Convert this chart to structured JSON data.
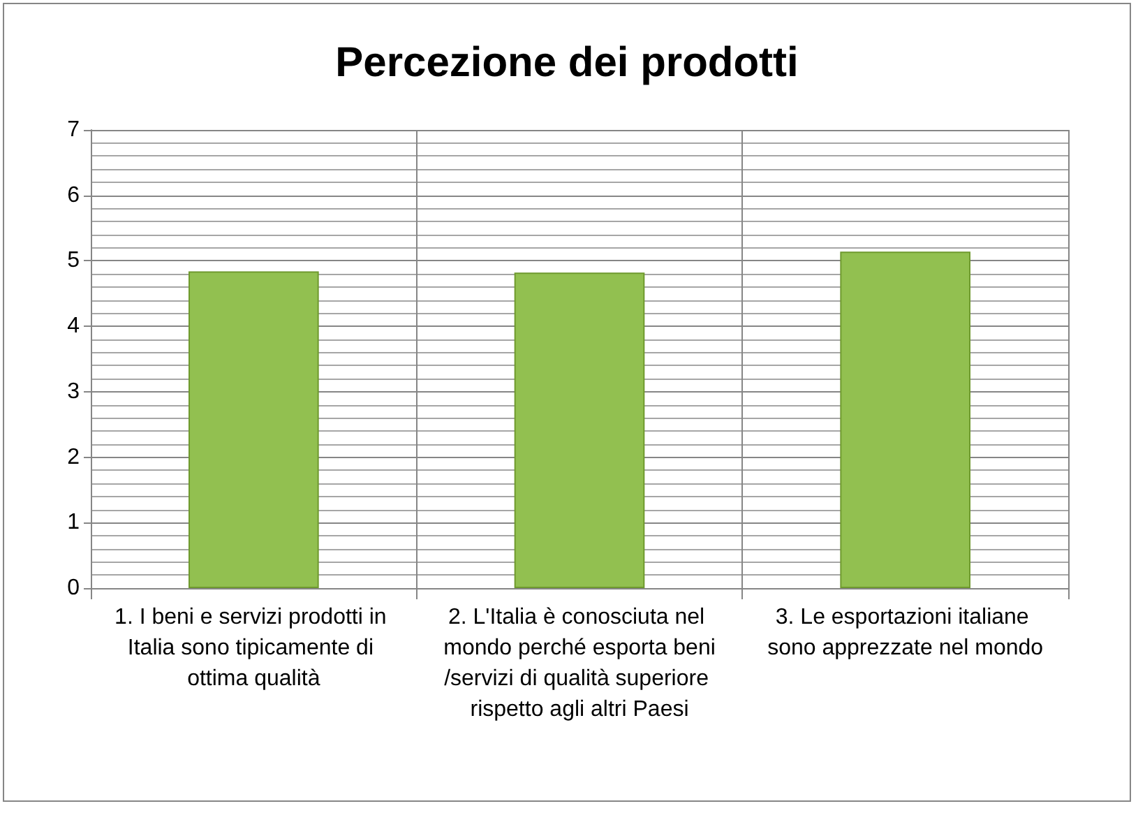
{
  "chart_data": {
    "type": "bar",
    "title": "Percezione dei prodotti",
    "categories": [
      "1. I beni e servizi prodotti in Italia sono tipicamente di ottima qualità",
      "2. L'Italia è conosciuta nel mondo perché esporta beni/servizi di qualità superiore rispetto agli altri Paesi",
      "3. Le esportazioni italiane sono apprezzate nel mondo"
    ],
    "values": [
      4.84,
      4.82,
      5.14
    ],
    "color": "#92c050",
    "ylim": [
      0,
      7
    ],
    "yticks": [
      0,
      1,
      2,
      3,
      4,
      5,
      6,
      7
    ],
    "grid": true
  }
}
